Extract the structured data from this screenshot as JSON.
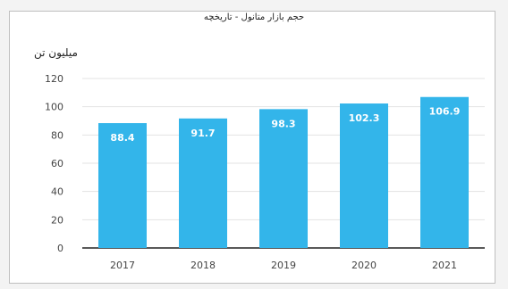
{
  "chart_data": {
    "type": "bar",
    "title": "حجم بازار متانول - تاریخچه",
    "ylabel": "میلیون تن",
    "xlabel": "",
    "categories": [
      "2017",
      "2018",
      "2019",
      "2020",
      "2021"
    ],
    "values": [
      88.4,
      91.7,
      98.3,
      102.3,
      106.9
    ],
    "data_labels": [
      "88.4",
      "91.7",
      "98.3",
      "102.3",
      "106.9"
    ],
    "ylim": [
      0,
      120
    ],
    "yticks": [
      "0",
      "20",
      "40",
      "60",
      "80",
      "100",
      "120"
    ],
    "grid": "horizontal",
    "bar_color": "#33b5ea",
    "label_color": "#ffffff"
  }
}
